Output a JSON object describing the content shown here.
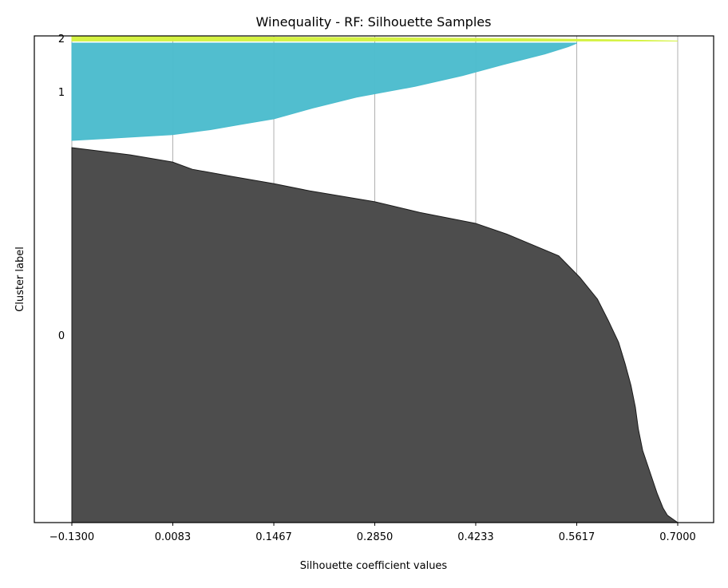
{
  "chart_data": {
    "type": "area",
    "title": "Winequality - RF: Silhouette Samples",
    "xlabel": "Silhouette coefficient values",
    "ylabel": "Cluster label",
    "xlim": [
      -0.13,
      0.7
    ],
    "xticks": [
      -0.13,
      0.0083,
      0.1467,
      0.285,
      0.4233,
      0.5617,
      0.7
    ],
    "xtick_labels": [
      "−0.1300",
      "0.0083",
      "0.1467",
      "0.2850",
      "0.4233",
      "0.5617",
      "0.7000"
    ],
    "grid": "vertical",
    "clusters": [
      {
        "label": "0",
        "color": "#4d4d4d",
        "y_range": [
          0,
          520
        ],
        "profile": [
          [
            0,
            0.7
          ],
          [
            10,
            0.686
          ],
          [
            20,
            0.68
          ],
          [
            40,
            0.672
          ],
          [
            70,
            0.662
          ],
          [
            100,
            0.652
          ],
          [
            130,
            0.646
          ],
          [
            160,
            0.642
          ],
          [
            190,
            0.636
          ],
          [
            220,
            0.628
          ],
          [
            250,
            0.619
          ],
          [
            280,
            0.605
          ],
          [
            310,
            0.59
          ],
          [
            340,
            0.566
          ],
          [
            370,
            0.537
          ],
          [
            400,
            0.466
          ],
          [
            415,
            0.423
          ],
          [
            430,
            0.347
          ],
          [
            445,
            0.285
          ],
          [
            460,
            0.196
          ],
          [
            470,
            0.147
          ],
          [
            480,
            0.09
          ],
          [
            490,
            0.035
          ],
          [
            500,
            0.008
          ],
          [
            510,
            -0.05
          ],
          [
            520,
            -0.13
          ]
        ]
      },
      {
        "label": "1",
        "color": "#4bbccd",
        "y_range": [
          530,
          665
        ],
        "profile": [
          [
            530,
            -0.13
          ],
          [
            534,
            -0.06
          ],
          [
            538,
            0.008
          ],
          [
            545,
            0.06
          ],
          [
            552,
            0.1
          ],
          [
            560,
            0.147
          ],
          [
            575,
            0.2
          ],
          [
            590,
            0.26
          ],
          [
            605,
            0.34
          ],
          [
            620,
            0.405
          ],
          [
            635,
            0.46
          ],
          [
            650,
            0.518
          ],
          [
            660,
            0.55
          ],
          [
            665,
            0.562
          ]
        ]
      },
      {
        "label": "2",
        "color": "#d4f23e",
        "y_range": [
          668,
          675
        ],
        "profile": [
          [
            668,
            0.7
          ],
          [
            669.5,
            0.62
          ],
          [
            671,
            0.5
          ],
          [
            672.5,
            0.3
          ],
          [
            674,
            0.0
          ],
          [
            675,
            -0.13
          ]
        ]
      }
    ],
    "ylim": [
      0,
      675
    ]
  }
}
